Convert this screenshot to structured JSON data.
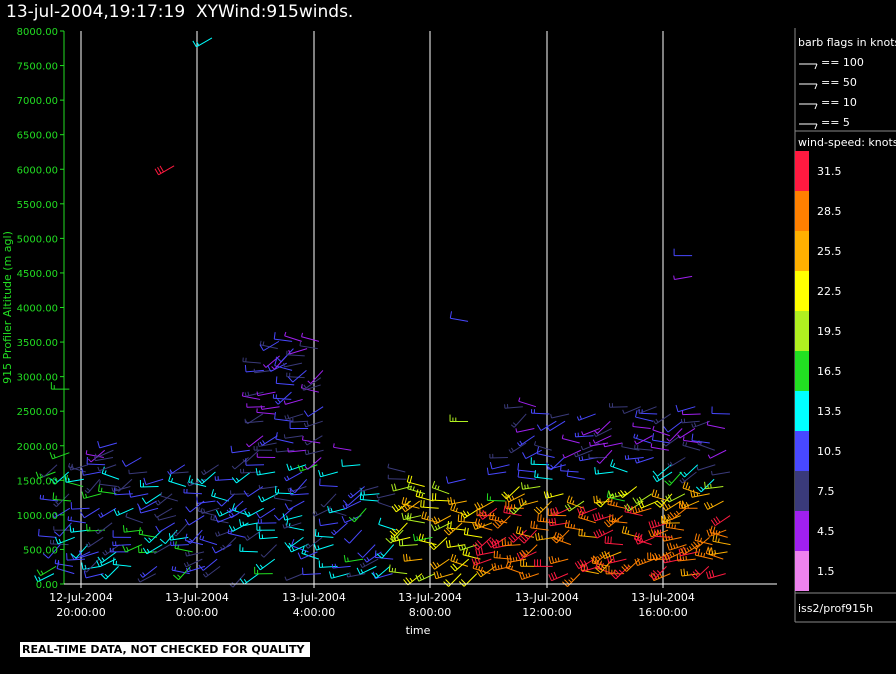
{
  "title": "13-jul-2004,19:17:19  XYWind:915winds.",
  "note": "REAL-TIME DATA, NOT CHECKED FOR QUALITY",
  "station": "iss2/prof915h",
  "barb_legend": {
    "title": "barb flags in knots",
    "entries": [
      "== 100",
      "== 50",
      "== 10",
      "== 5"
    ]
  },
  "speed_legend": {
    "title": "wind-speed: knots",
    "levels": [
      {
        "label": "31.5",
        "color": "#ff1a40"
      },
      {
        "label": "28.5",
        "color": "#ff8000"
      },
      {
        "label": "25.5",
        "color": "#ffb000"
      },
      {
        "label": "22.5",
        "color": "#ffff00"
      },
      {
        "label": "19.5",
        "color": "#b0f020"
      },
      {
        "label": "16.5",
        "color": "#22e022"
      },
      {
        "label": "13.5",
        "color": "#00ffff"
      },
      {
        "label": "10.5",
        "color": "#4848ff"
      },
      {
        "label": "7.5",
        "color": "#3a3a7a"
      },
      {
        "label": "4.5",
        "color": "#a020f0"
      },
      {
        "label": "1.5",
        "color": "#ee82ee"
      }
    ]
  },
  "chart_data": {
    "type": "scatter",
    "title": "13-jul-2004,19:17:19  XYWind:915winds.",
    "xlabel": "time",
    "ylabel": "915 Profiler Altitude (m agl)",
    "ylim": [
      0,
      8000
    ],
    "y_ticks": [
      "0.00",
      "500.00",
      "1000.00",
      "1500.00",
      "2000.00",
      "2500.00",
      "3000.00",
      "3500.00",
      "4000.00",
      "4500.00",
      "5000.00",
      "5500.00",
      "6000.00",
      "6500.00",
      "7000.00",
      "7500.00",
      "8000.00"
    ],
    "x_ticks": [
      {
        "date": "12-Jul-2004",
        "time": "20:00:00"
      },
      {
        "date": "13-Jul-2004",
        "time": "0:00:00"
      },
      {
        "date": "13-Jul-2004",
        "time": "4:00:00"
      },
      {
        "date": "13-Jul-2004",
        "time": "8:00:00"
      },
      {
        "date": "13-Jul-2004",
        "time": "12:00:00"
      },
      {
        "date": "13-Jul-2004",
        "time": "16:00:00"
      }
    ],
    "xlim_hours_since_2004_07_12_19_00": [
      0,
      24
    ],
    "series": [
      {
        "time_offset_hours": 0.6,
        "altitude_m": 2820,
        "speed_kt": 16.5,
        "dir_deg": 270
      },
      {
        "time_offset_hours": 0.6,
        "altitude_m": 1900,
        "speed_kt": 16.5,
        "dir_deg": 250
      },
      {
        "time_offset_hours": 4.2,
        "altitude_m": 6050,
        "speed_kt": 31.5,
        "dir_deg": 240
      },
      {
        "time_offset_hours": 5.5,
        "altitude_m": 7900,
        "speed_kt": 13.5,
        "dir_deg": 240
      },
      {
        "time_offset_hours": 14.3,
        "altitude_m": 3800,
        "speed_kt": 10.5,
        "dir_deg": 280
      },
      {
        "time_offset_hours": 14.3,
        "altitude_m": 2350,
        "speed_kt": 19.5,
        "dir_deg": 270
      },
      {
        "time_offset_hours": 22.0,
        "altitude_m": 4750,
        "speed_kt": 10.5,
        "dir_deg": 270
      },
      {
        "time_offset_hours": 22.0,
        "altitude_m": 4450,
        "speed_kt": 4.5,
        "dir_deg": 260
      }
    ]
  }
}
